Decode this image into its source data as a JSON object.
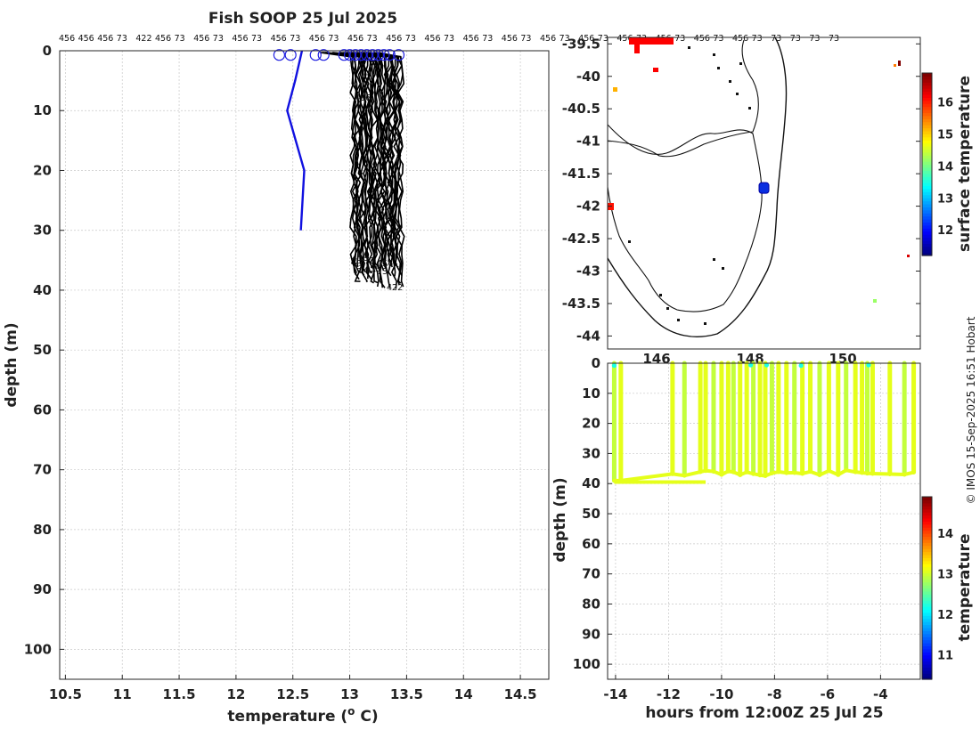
{
  "chart_data": [
    {
      "type": "line",
      "title": "Fish SOOP 25 Jul 2025",
      "xlabel": "temperature (",
      "xlabel_sup": "o",
      "xlabel_unit": " C)",
      "ylabel": "depth (m)",
      "xlim": [
        10.45,
        14.75
      ],
      "ylim": [
        105,
        0
      ],
      "xticks": [
        10.5,
        11,
        11.5,
        12,
        12.5,
        13,
        13.5,
        14,
        14.5
      ],
      "yticks": [
        0,
        10,
        20,
        30,
        40,
        50,
        60,
        70,
        80,
        90,
        100
      ],
      "top_labels": [
        "456",
        "456",
        "456",
        "73",
        "422",
        "456",
        "73",
        "456",
        "73",
        "456",
        "73",
        "456",
        "73",
        "456",
        "73",
        "456",
        "73",
        "456",
        "73",
        "456",
        "73",
        "456",
        "73",
        "456",
        "73",
        "456",
        "73",
        "456",
        "73",
        "456",
        "73",
        "456",
        "73",
        "456",
        "73",
        "456",
        "73",
        "73",
        "73",
        "73",
        "73"
      ],
      "profile_end_labels": [
        "456",
        "73",
        "456",
        "73",
        "456",
        "73",
        "422"
      ],
      "series": [
        {
          "name": "blue profile",
          "color": "#1010e0",
          "depth": [
            0,
            5,
            10,
            20,
            30
          ],
          "temperature": [
            12.58,
            12.52,
            12.45,
            12.6,
            12.57
          ]
        },
        {
          "name": "black profiles",
          "color": "#000000",
          "count": 40,
          "temperature_range": [
            13.03,
            13.45
          ],
          "max_depth_range": [
            35,
            40
          ]
        }
      ],
      "surface_markers_temperature": [
        12.38,
        12.48,
        12.7,
        12.77,
        12.95,
        13.0,
        13.05,
        13.1,
        13.15,
        13.2,
        13.25,
        13.3,
        13.35,
        13.43
      ]
    },
    {
      "type": "heatmap",
      "subtype": "map",
      "ylabel_ticks": [
        "-39.5",
        "-40",
        "-40.5",
        "-41",
        "-41.5",
        "-42",
        "-42.5",
        "-43",
        "-43.5",
        "-44"
      ],
      "ylim": [
        -44.2,
        -39.4
      ],
      "partial_x_ticks": [
        "146",
        "148",
        "150"
      ],
      "marker_position": {
        "lon": 148.35,
        "lat": -41.72
      },
      "colorbar_label": "surface temperature",
      "colorbar_ticks": [
        12,
        13,
        14,
        15,
        16
      ],
      "colorbar_range": [
        11.2,
        16.9
      ]
    },
    {
      "type": "scatter",
      "xlabel": "hours from 12:00Z 25 Jul 25",
      "ylabel": "depth (m)",
      "xlim": [
        -14.3,
        -2.5
      ],
      "ylim": [
        105,
        0
      ],
      "xticks": [
        -14,
        -12,
        -10,
        -8,
        -6,
        -4
      ],
      "yticks": [
        0,
        10,
        20,
        30,
        40,
        50,
        60,
        70,
        80,
        90,
        100
      ],
      "profile_times_hours": [
        -14.05,
        -13.8,
        -11.85,
        -11.4,
        -10.8,
        -10.6,
        -10.3,
        -10.0,
        -9.75,
        -9.55,
        -9.3,
        -9.05,
        -8.8,
        -8.55,
        -8.35,
        -8.1,
        -7.85,
        -7.55,
        -7.25,
        -6.95,
        -6.65,
        -6.3,
        -5.95,
        -5.6,
        -5.3,
        -4.95,
        -4.7,
        -4.5,
        -4.3,
        -3.65,
        -3.1,
        -2.75
      ],
      "profile_depth_range": [
        35,
        40
      ],
      "colorbar_label": "temperature",
      "colorbar_ticks": [
        11,
        12,
        13,
        14
      ],
      "colorbar_range": [
        10.4,
        14.9
      ]
    }
  ],
  "credit": "© IMOS 15-Sep-2025 16:51 Hobart"
}
